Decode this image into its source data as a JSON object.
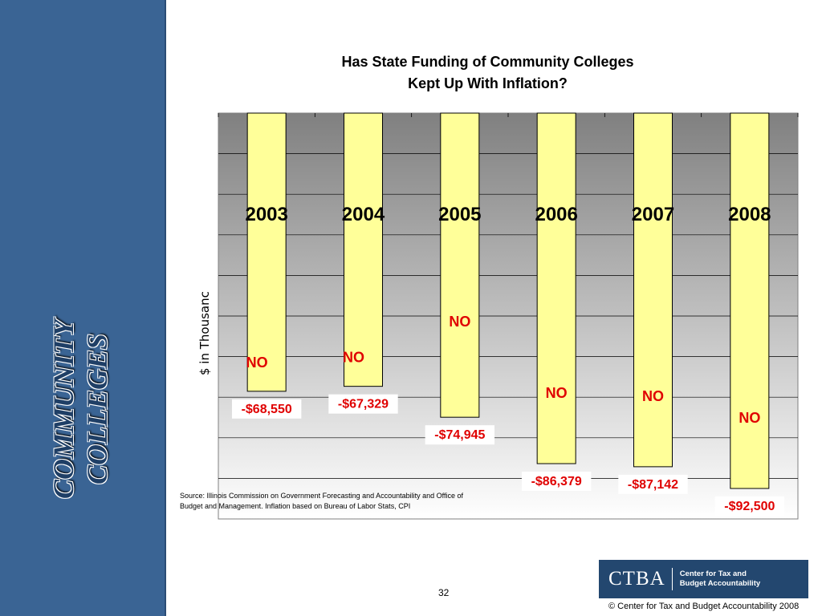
{
  "sidebar": {
    "title_line1": "COMMUNITY",
    "title_line2": "COLLEGES"
  },
  "chart_data": {
    "type": "bar",
    "title_line1": "Has State Funding of Community Colleges",
    "title_line2": "Kept Up With Inflation?",
    "ylabel": "$ in Thousands",
    "ylabel_visible": "$ in Thousanc",
    "categories": [
      "2003",
      "2004",
      "2005",
      "2006",
      "2007",
      "2008"
    ],
    "values": [
      -68550,
      -67329,
      -74945,
      -86379,
      -87142,
      -92500
    ],
    "value_labels": [
      "-$68,550",
      "-$67,329",
      "-$74,945",
      "-$86,379",
      "-$87,142",
      "-$92,500"
    ],
    "answer_labels": [
      "NO",
      "NO",
      "NO",
      "NO",
      "NO",
      "NO"
    ],
    "ylim": [
      -100000,
      0
    ],
    "grid": true,
    "colors": {
      "bar": "#ffff99",
      "bar_border": "#000000",
      "label_text": "#e00000",
      "plot_top": "#808080",
      "plot_bottom": "#ffffff"
    }
  },
  "source": "Source:  Illinois Commission on Government Forecasting and Accountability and Office of Budget and Management.  Inflation based on Bureau of Labor Stats, CPI",
  "page_number": "32",
  "logo": {
    "mark": "CTBA",
    "line1": "Center for Tax and",
    "line2": "Budget Accountability"
  },
  "copyright": "©  Center for Tax and Budget Accountability 2008"
}
